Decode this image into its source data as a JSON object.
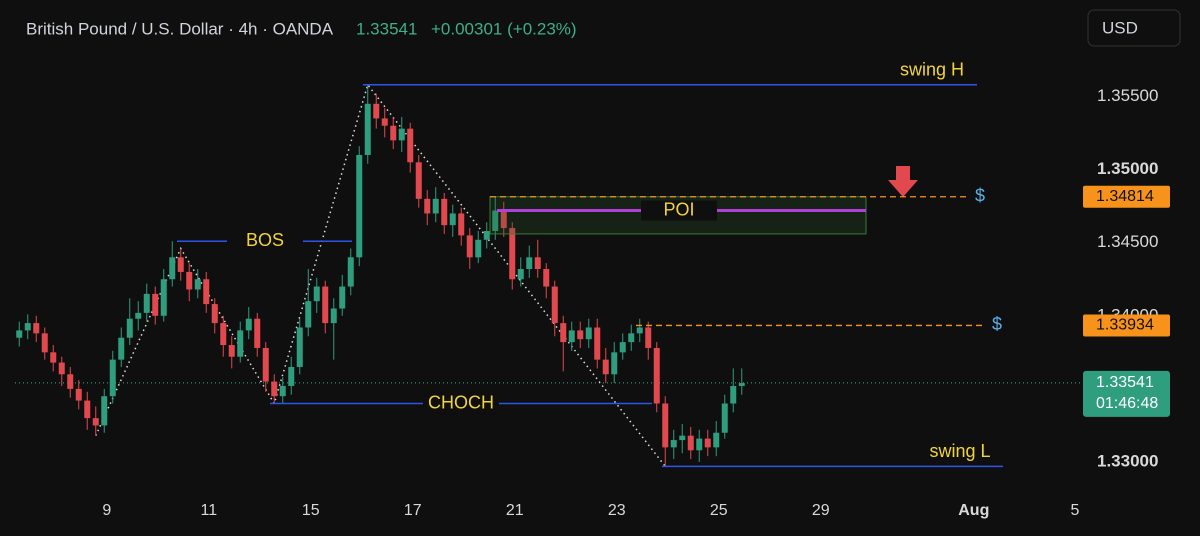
{
  "chart_data": {
    "type": "candlestick",
    "title": "British Pound / U.S. Dollar · 4h · OANDA",
    "last": "1.33541",
    "change": "+0.00301 (+0.23%)",
    "currency": "USD",
    "up_color": "#2e9e7e",
    "down_color": "#e2494f",
    "open": [
      1.3385,
      1.339,
      1.3395,
      1.3388,
      1.3375,
      1.3368,
      1.336,
      1.335,
      1.3342,
      1.333,
      1.3325,
      1.3345,
      1.337,
      1.3385,
      1.3398,
      1.3402,
      1.3415,
      1.34,
      1.3425,
      1.344,
      1.343,
      1.3418,
      1.3425,
      1.3408,
      1.3395,
      1.338,
      1.3372,
      1.339,
      1.3398,
      1.3378,
      1.3355,
      1.3345,
      1.3352,
      1.3365,
      1.3392,
      1.341,
      1.342,
      1.3395,
      1.3405,
      1.342,
      1.344,
      1.351,
      1.3545,
      1.3535,
      1.353,
      1.352,
      1.3528,
      1.3505,
      1.348,
      1.347,
      1.348,
      1.3462,
      1.347,
      1.3455,
      1.344,
      1.3452,
      1.3458,
      1.3472,
      1.346,
      1.3425,
      1.3432,
      1.344,
      1.3432,
      1.342,
      1.3395,
      1.3382,
      1.339,
      1.3384,
      1.3392,
      1.337,
      1.336,
      1.3375,
      1.3382,
      1.3388,
      1.3392,
      1.3378,
      1.334,
      1.331,
      1.3315,
      1.3318,
      1.3308,
      1.3316,
      1.331,
      1.332,
      1.334,
      1.3352
    ],
    "high": [
      1.3396,
      1.3401,
      1.34,
      1.3392,
      1.338,
      1.3372,
      1.3365,
      1.3356,
      1.3348,
      1.3338,
      1.335,
      1.3376,
      1.3392,
      1.3412,
      1.341,
      1.3422,
      1.342,
      1.3432,
      1.3451,
      1.3446,
      1.3436,
      1.3432,
      1.343,
      1.3412,
      1.34,
      1.3386,
      1.3396,
      1.3406,
      1.3402,
      1.3382,
      1.336,
      1.3358,
      1.3372,
      1.3398,
      1.3432,
      1.3426,
      1.3424,
      1.3412,
      1.3428,
      1.3446,
      1.3516,
      1.3558,
      1.3552,
      1.3542,
      1.3536,
      1.3536,
      1.3532,
      1.351,
      1.3486,
      1.3488,
      1.3484,
      1.3476,
      1.3474,
      1.346,
      1.3458,
      1.3464,
      1.3481,
      1.3478,
      1.3464,
      1.344,
      1.3448,
      1.3452,
      1.3436,
      1.3424,
      1.34,
      1.3396,
      1.3396,
      1.3398,
      1.3398,
      1.3378,
      1.3382,
      1.3388,
      1.3394,
      1.3398,
      1.3396,
      1.3382,
      1.3345,
      1.3322,
      1.3326,
      1.3324,
      1.3322,
      1.3322,
      1.3328,
      1.3346,
      1.3364,
      1.3364
    ],
    "low": [
      1.3379,
      1.3384,
      1.3382,
      1.337,
      1.3362,
      1.3352,
      1.3344,
      1.3336,
      1.3322,
      1.3318,
      1.332,
      1.334,
      1.3365,
      1.338,
      1.339,
      1.3396,
      1.3394,
      1.3396,
      1.342,
      1.3424,
      1.341,
      1.3412,
      1.3402,
      1.3388,
      1.3372,
      1.3364,
      1.3368,
      1.3384,
      1.3372,
      1.3348,
      1.334,
      1.334,
      1.3346,
      1.336,
      1.3386,
      1.3402,
      1.3388,
      1.337,
      1.34,
      1.3414,
      1.3434,
      1.3504,
      1.3528,
      1.3522,
      1.3514,
      1.3512,
      1.3498,
      1.3474,
      1.3462,
      1.3464,
      1.3456,
      1.3454,
      1.3448,
      1.3432,
      1.3436,
      1.3446,
      1.3452,
      1.3454,
      1.3418,
      1.342,
      1.3426,
      1.3426,
      1.3412,
      1.3386,
      1.3362,
      1.3376,
      1.3378,
      1.3378,
      1.3364,
      1.3354,
      1.3354,
      1.337,
      1.3376,
      1.3382,
      1.337,
      1.3334,
      1.3297,
      1.3302,
      1.3306,
      1.3302,
      1.33,
      1.3304,
      1.3304,
      1.3316,
      1.3334,
      1.3346
    ],
    "close": [
      1.339,
      1.3395,
      1.3388,
      1.3375,
      1.3368,
      1.336,
      1.335,
      1.3342,
      1.333,
      1.3325,
      1.3345,
      1.337,
      1.3385,
      1.3398,
      1.3402,
      1.3415,
      1.34,
      1.3425,
      1.344,
      1.343,
      1.3418,
      1.3425,
      1.3408,
      1.3395,
      1.338,
      1.3372,
      1.339,
      1.3398,
      1.3378,
      1.3355,
      1.3345,
      1.3352,
      1.3365,
      1.3392,
      1.341,
      1.342,
      1.3395,
      1.3405,
      1.342,
      1.344,
      1.351,
      1.3545,
      1.3535,
      1.353,
      1.352,
      1.3528,
      1.3505,
      1.348,
      1.347,
      1.348,
      1.3462,
      1.347,
      1.3455,
      1.344,
      1.3452,
      1.3458,
      1.3472,
      1.346,
      1.3425,
      1.3432,
      1.344,
      1.3432,
      1.342,
      1.3395,
      1.3382,
      1.339,
      1.3384,
      1.3392,
      1.337,
      1.336,
      1.3375,
      1.3382,
      1.3388,
      1.3392,
      1.3378,
      1.334,
      1.331,
      1.3315,
      1.3318,
      1.3308,
      1.3316,
      1.331,
      1.332,
      1.334,
      1.3352,
      1.3354
    ],
    "ylim": [
      1.3274,
      1.3616
    ],
    "yticks": [
      {
        "value": 1.355,
        "label": "1.35500"
      },
      {
        "value": 1.35,
        "label": "1.35000"
      },
      {
        "value": 1.345,
        "label": "1.34500"
      },
      {
        "value": 1.34,
        "label": "1.34000"
      },
      {
        "value": 1.33,
        "label": "1.33000"
      }
    ],
    "xlim": [
      0,
      125.3
    ],
    "xticks": [
      {
        "value": 10.8,
        "label": "9"
      },
      {
        "value": 22.8,
        "label": "11"
      },
      {
        "value": 34.8,
        "label": "15"
      },
      {
        "value": 46.8,
        "label": "17"
      },
      {
        "value": 58.8,
        "label": "21"
      },
      {
        "value": 70.8,
        "label": "23"
      },
      {
        "value": 82.8,
        "label": "25"
      },
      {
        "value": 94.8,
        "label": "29"
      },
      {
        "value": 112.8,
        "label": "Aug"
      },
      {
        "value": 124.7,
        "label": "5"
      }
    ],
    "levels": [
      {
        "label": "swing H",
        "value": 1.3558
      },
      {
        "label": "BOS",
        "value": 1.3451
      },
      {
        "label": "CHOCH",
        "value": 1.334
      },
      {
        "label": "swing L",
        "value": 1.3297
      },
      {
        "label": "POI",
        "value": 1.3472,
        "zone": [
          1.3456,
          1.34814
        ]
      }
    ],
    "liquidity": [
      {
        "label": "$",
        "value": 1.34814,
        "price_label": "1.34814"
      },
      {
        "label": "$",
        "value": 1.33934,
        "price_label": "1.33934"
      }
    ],
    "last_price": {
      "value": 1.33541,
      "label": "1.33541",
      "countdown": "01:46:48"
    }
  }
}
